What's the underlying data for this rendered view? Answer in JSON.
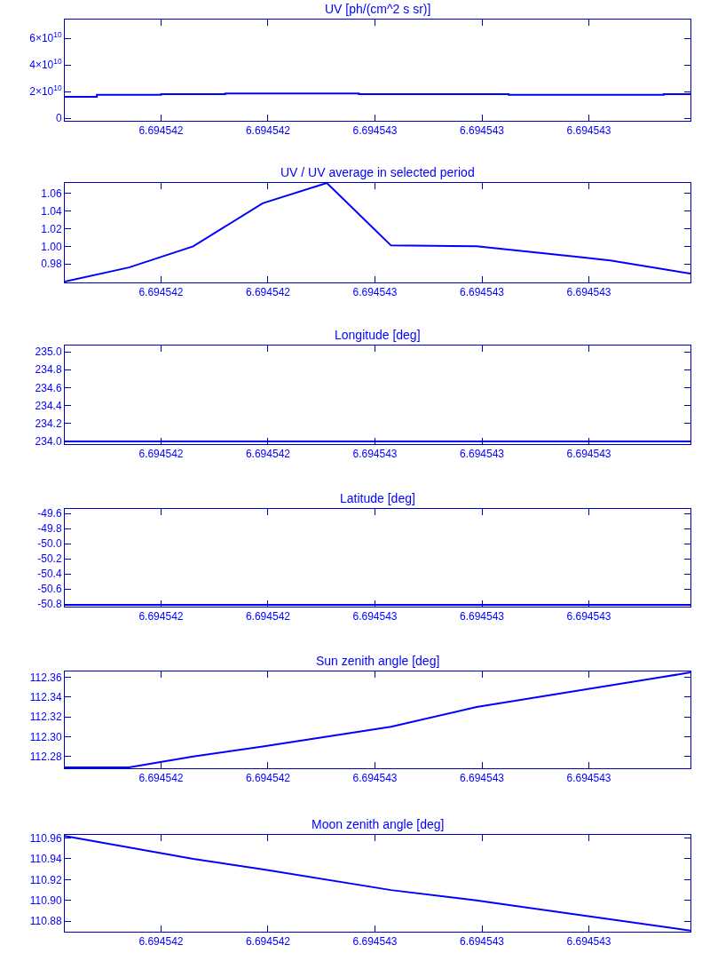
{
  "chart_data": [
    {
      "type": "step",
      "title": "UV [ph/(cm^2 s sr)]",
      "x": [
        6.69454202,
        6.69454208,
        6.6945422,
        6.69454232,
        6.69454257,
        6.69454285,
        6.69454314,
        6.69454319
      ],
      "series": [
        {
          "color": "#0000ff",
          "values": [
            16000000000.0,
            17500000000.0,
            18000000000.0,
            18500000000.0,
            18000000000.0,
            17500000000.0,
            18000000000.0,
            18000000000.0
          ]
        }
      ],
      "xlim": [
        6.69454202,
        6.69454319
      ],
      "xticks": [
        {
          "value": 6.6945422,
          "label": "6.694542"
        },
        {
          "value": 6.6945424,
          "label": "6.694542"
        },
        {
          "value": 6.6945426,
          "label": "6.694543"
        },
        {
          "value": 6.6945428,
          "label": "6.694543"
        },
        {
          "value": 6.694543,
          "label": "6.694543"
        }
      ],
      "ylim": [
        -2000000000.0,
        74000000000.0
      ],
      "yticks": [
        0,
        {
          "value": 20000000000.0,
          "label": "2×10$^{10}$"
        },
        {
          "value": 40000000000.0,
          "label": "4×10$^{10}$"
        },
        {
          "value": 60000000000.0,
          "label": "6×10$^{10}$"
        }
      ]
    },
    {
      "type": "line",
      "title": "UV / UV average in selected period",
      "x": [
        6.69454202,
        6.69454214,
        6.69454226,
        6.69454239,
        6.69454251,
        6.69454263,
        6.69454279,
        6.69454298,
        6.69454304,
        6.69454319
      ],
      "series": [
        {
          "color": "#0000ff",
          "values": [
            0.96,
            0.976,
            1.0,
            1.049,
            1.072,
            1.001,
            1.0,
            0.988,
            0.984,
            0.969
          ]
        }
      ],
      "xlim": [
        6.69454202,
        6.69454319
      ],
      "xticks": [
        {
          "value": 6.6945422,
          "label": "6.694542"
        },
        {
          "value": 6.6945424,
          "label": "6.694542"
        },
        {
          "value": 6.6945426,
          "label": "6.694543"
        },
        {
          "value": 6.6945428,
          "label": "6.694543"
        },
        {
          "value": 6.694543,
          "label": "6.694543"
        }
      ],
      "ylim": [
        0.959,
        1.072
      ],
      "yticks": [
        {
          "value": 0.98,
          "label": "0.98"
        },
        {
          "value": 1.0,
          "label": "1.00"
        },
        {
          "value": 1.02,
          "label": "1.02"
        },
        {
          "value": 1.04,
          "label": "1.04"
        },
        {
          "value": 1.06,
          "label": "1.06"
        }
      ]
    },
    {
      "type": "line",
      "title": "Longitude [deg]",
      "x": [
        6.69454202,
        6.69454239,
        6.69454279,
        6.69454319
      ],
      "series": [
        {
          "color": "#0000ff",
          "values": [
            234.0,
            234.0,
            234.0,
            234.0
          ]
        }
      ],
      "xlim": [
        6.69454202,
        6.69454319
      ],
      "xticks": [
        {
          "value": 6.6945422,
          "label": "6.694542"
        },
        {
          "value": 6.6945424,
          "label": "6.694542"
        },
        {
          "value": 6.6945426,
          "label": "6.694543"
        },
        {
          "value": 6.6945428,
          "label": "6.694543"
        },
        {
          "value": 6.694543,
          "label": "6.694543"
        }
      ],
      "ylim": [
        233.97,
        235.07
      ],
      "yticks": [
        {
          "value": 234.0,
          "label": "234.0"
        },
        {
          "value": 234.2,
          "label": "234.2"
        },
        {
          "value": 234.4,
          "label": "234.4"
        },
        {
          "value": 234.6,
          "label": "234.6"
        },
        {
          "value": 234.8,
          "label": "234.8"
        },
        {
          "value": 235.0,
          "label": "235.0"
        }
      ]
    },
    {
      "type": "line",
      "title": "Latitude [deg]",
      "x": [
        6.69454202,
        6.69454239,
        6.69454279,
        6.69454319
      ],
      "series": [
        {
          "color": "#0000ff",
          "values": [
            -50.81,
            -50.81,
            -50.81,
            -50.81
          ]
        }
      ],
      "xlim": [
        6.69454202,
        6.69454319
      ],
      "xticks": [
        {
          "value": 6.6945422,
          "label": "6.694542"
        },
        {
          "value": 6.6945424,
          "label": "6.694542"
        },
        {
          "value": 6.6945426,
          "label": "6.694543"
        },
        {
          "value": 6.6945428,
          "label": "6.694543"
        },
        {
          "value": 6.694543,
          "label": "6.694543"
        }
      ],
      "ylim": [
        -50.835,
        -49.54
      ],
      "yticks": [
        {
          "value": -50.8,
          "label": "-50.8"
        },
        {
          "value": -50.6,
          "label": "-50.6"
        },
        {
          "value": -50.4,
          "label": "-50.4"
        },
        {
          "value": -50.2,
          "label": "-50.2"
        },
        {
          "value": -50.0,
          "label": "-50.0"
        },
        {
          "value": -49.8,
          "label": "-49.8"
        },
        {
          "value": -49.6,
          "label": "-49.6"
        }
      ]
    },
    {
      "type": "line",
      "title": "Sun zenith angle [deg]",
      "x": [
        6.69454202,
        6.69454214,
        6.69454226,
        6.69454239,
        6.69454263,
        6.69454279,
        6.69454319
      ],
      "series": [
        {
          "color": "#0000ff",
          "values": [
            112.269,
            112.269,
            112.28,
            112.29,
            112.31,
            112.33,
            112.365
          ]
        }
      ],
      "xlim": [
        6.69454202,
        6.69454319
      ],
      "xticks": [
        {
          "value": 6.6945422,
          "label": "6.694542"
        },
        {
          "value": 6.6945424,
          "label": "6.694542"
        },
        {
          "value": 6.6945426,
          "label": "6.694543"
        },
        {
          "value": 6.6945428,
          "label": "6.694543"
        },
        {
          "value": 6.694543,
          "label": "6.694543"
        }
      ],
      "ylim": [
        112.268,
        112.366
      ],
      "yticks": [
        {
          "value": 112.28,
          "label": "112.28"
        },
        {
          "value": 112.3,
          "label": "112.30"
        },
        {
          "value": 112.32,
          "label": "112.32"
        },
        {
          "value": 112.34,
          "label": "112.34"
        },
        {
          "value": 112.36,
          "label": "112.36"
        }
      ]
    },
    {
      "type": "line",
      "title": "Moon zenith angle [deg]",
      "x": [
        6.69454202,
        6.69454226,
        6.69454239,
        6.69454263,
        6.69454279,
        6.69454319
      ],
      "series": [
        {
          "color": "#0000ff",
          "values": [
            110.962,
            110.94,
            110.93,
            110.91,
            110.9,
            110.871
          ]
        }
      ],
      "xlim": [
        6.69454202,
        6.69454319
      ],
      "xticks": [
        {
          "value": 6.6945422,
          "label": "6.694542"
        },
        {
          "value": 6.6945424,
          "label": "6.694542"
        },
        {
          "value": 6.6945426,
          "label": "6.694543"
        },
        {
          "value": 6.6945428,
          "label": "6.694543"
        },
        {
          "value": 6.694543,
          "label": "6.694543"
        }
      ],
      "ylim": [
        110.87,
        110.963
      ],
      "yticks": [
        {
          "value": 110.88,
          "label": "110.88"
        },
        {
          "value": 110.9,
          "label": "110.90"
        },
        {
          "value": 110.92,
          "label": "110.92"
        },
        {
          "value": 110.94,
          "label": "110.94"
        },
        {
          "value": 110.96,
          "label": "110.96"
        }
      ]
    }
  ]
}
